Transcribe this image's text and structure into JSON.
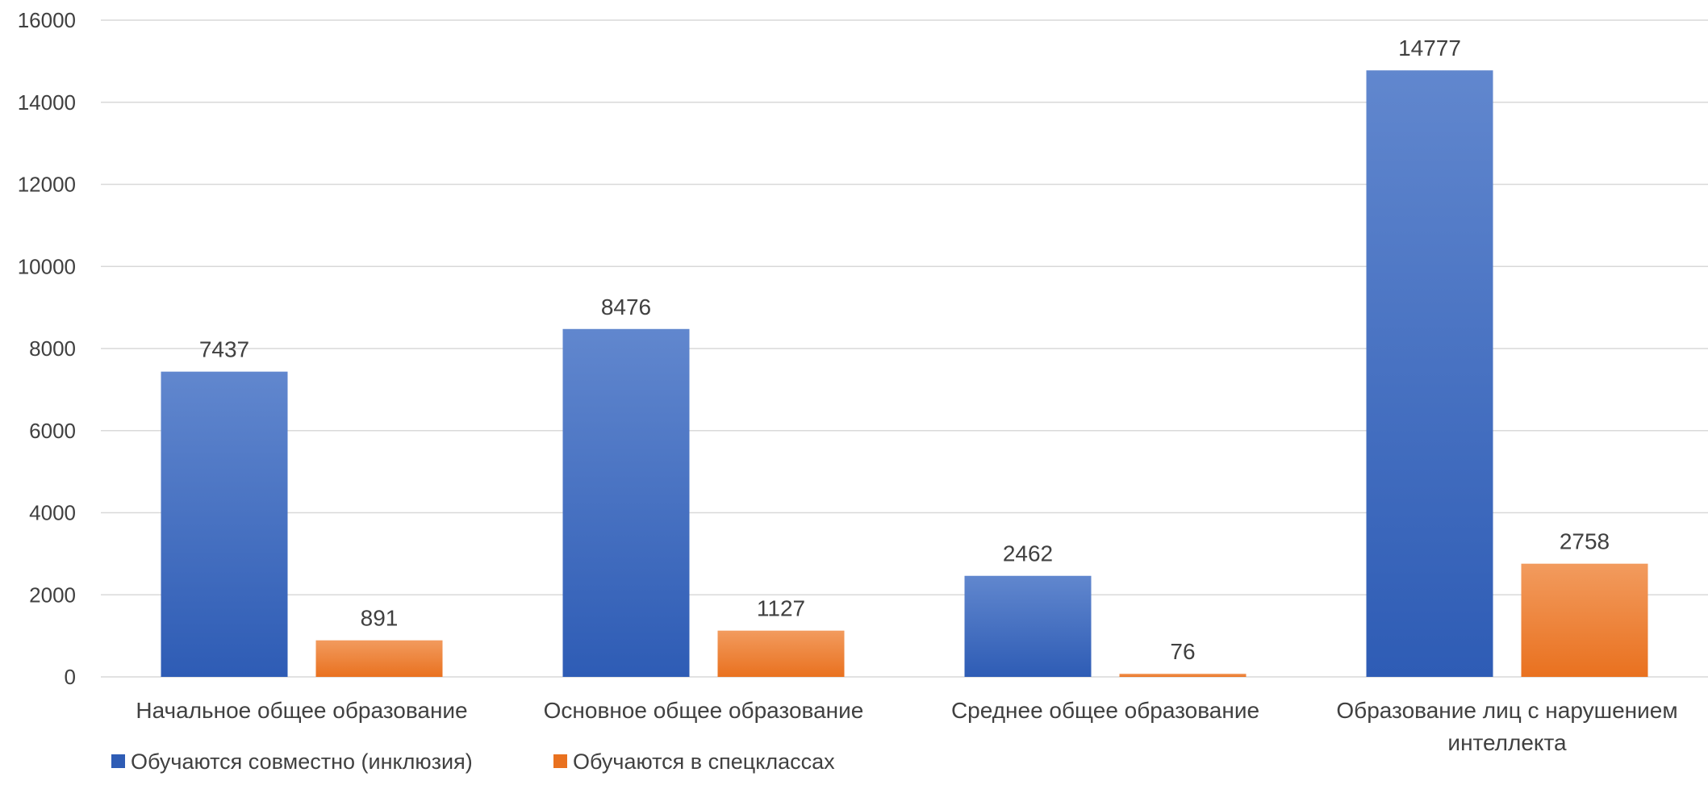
{
  "chart_data": {
    "type": "bar",
    "categories": [
      [
        "Начальное общее образование"
      ],
      [
        "Основное общее образование"
      ],
      [
        "Среднее общее образование"
      ],
      [
        "Образование лиц с нарушением",
        "интеллекта"
      ]
    ],
    "series": [
      {
        "name": "Обучаются совместно (инклюзия)",
        "values": [
          7437,
          8476,
          2462,
          14777
        ],
        "color_top": "#6187CE",
        "color_bottom": "#2E5CB5"
      },
      {
        "name": "Обучаются в спецклассах",
        "values": [
          891,
          1127,
          76,
          2758
        ],
        "color_top": "#F29B5E",
        "color_bottom": "#E9711F"
      }
    ],
    "title": "",
    "xlabel": "",
    "ylabel": "",
    "ylim": [
      0,
      16000
    ],
    "yticks": [
      0,
      2000,
      4000,
      6000,
      8000,
      10000,
      12000,
      14000,
      16000
    ],
    "grid": true,
    "legend": "bottom-left",
    "grid_color": "#D9D9D9"
  }
}
